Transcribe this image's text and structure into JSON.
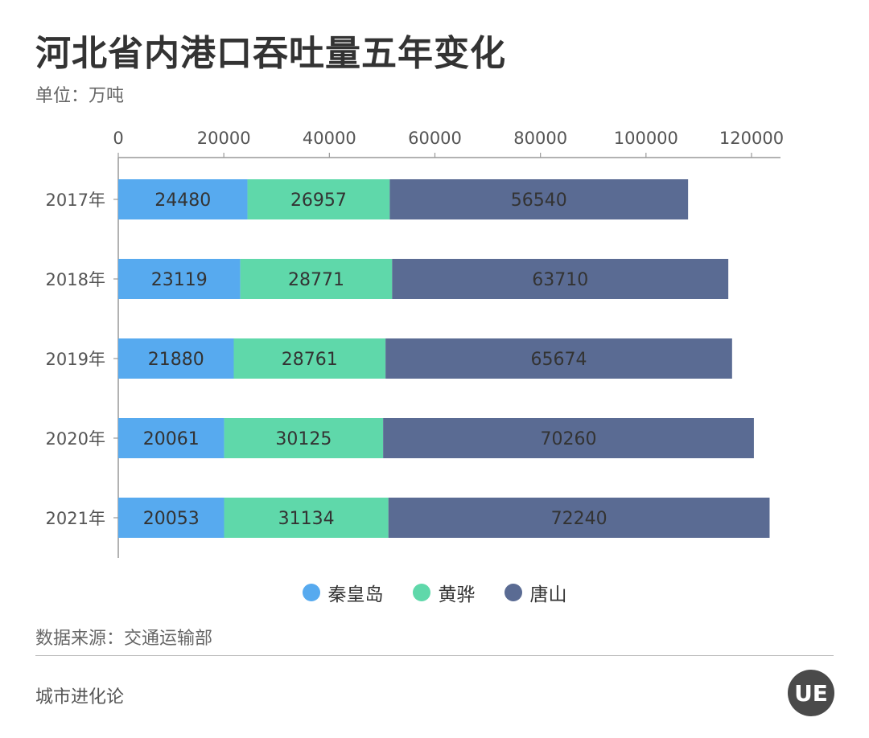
{
  "header": {
    "title": "河北省内港口吞吐量五年变化",
    "unit": "单位：万吨"
  },
  "footer": {
    "source": "数据来源：交通运输部",
    "brand": "城市进化论",
    "logo_text": "UE"
  },
  "legend": [
    {
      "label": "秦皇岛",
      "color": "#57aaef"
    },
    {
      "label": "黄骅",
      "color": "#5fd8aa"
    },
    {
      "label": "唐山",
      "color": "#5a6b93"
    }
  ],
  "chart_data": {
    "type": "bar",
    "orientation": "horizontal",
    "stacked": true,
    "title": "河北省内港口吞吐量五年变化",
    "unit": "万吨",
    "categories": [
      "2017年",
      "2018年",
      "2019年",
      "2020年",
      "2021年"
    ],
    "series": [
      {
        "name": "秦皇岛",
        "color": "#57aaef",
        "values": [
          24480,
          23119,
          21880,
          20061,
          20053
        ]
      },
      {
        "name": "黄骅",
        "color": "#5fd8aa",
        "values": [
          26957,
          28771,
          28761,
          30125,
          31134
        ]
      },
      {
        "name": "唐山",
        "color": "#5a6b93",
        "values": [
          56540,
          63710,
          65674,
          70260,
          72240
        ]
      }
    ],
    "xlim": [
      0,
      120000
    ],
    "xticks": [
      0,
      20000,
      40000,
      60000,
      80000,
      100000,
      120000
    ],
    "x_axis_position": "top",
    "data_labels": true,
    "legend_position": "bottom"
  }
}
